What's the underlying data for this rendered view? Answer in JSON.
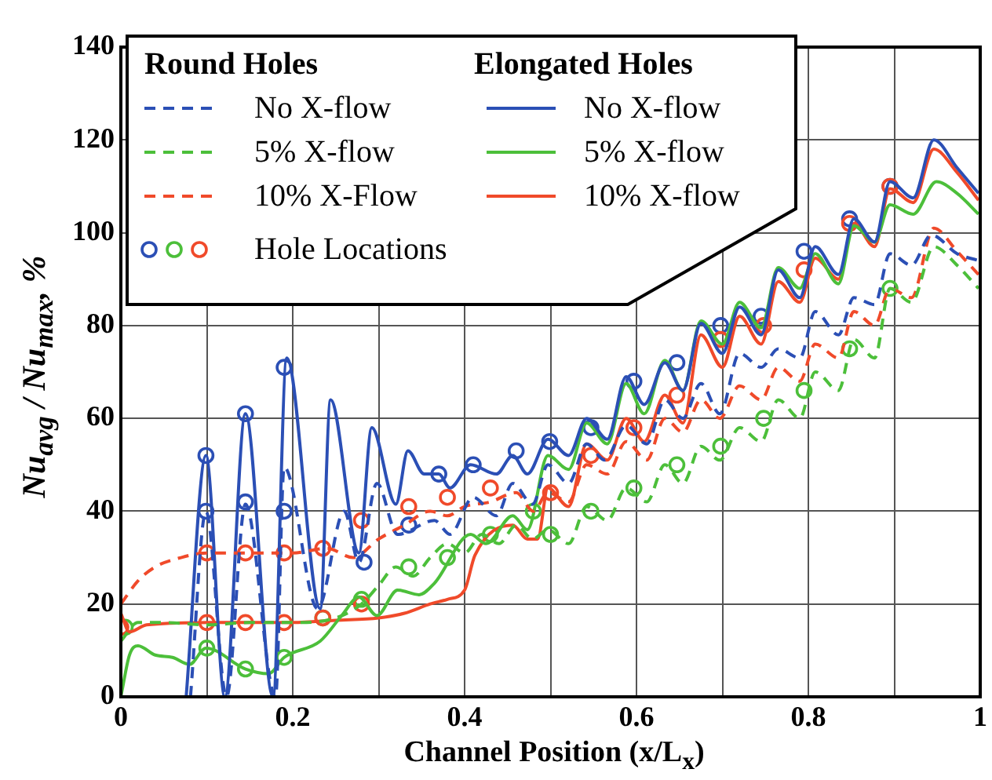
{
  "chart_data": {
    "type": "line",
    "xlabel": "Channel Position (x/L$_{x}$)",
    "ylabel": "Nu$_{avg}$ / Nu$_{max}$, %",
    "annotations": [
      "Round Holes",
      "Elongated Holes"
    ],
    "xlim": [
      0,
      1
    ],
    "xticks": [
      0,
      {
        "value": 0.1,
        "label": null
      },
      0.2,
      {
        "value": 0.3,
        "label": null
      },
      0.4,
      {
        "value": 0.5,
        "label": null
      },
      0.6,
      {
        "value": 0.7,
        "label": null
      },
      0.8,
      {
        "value": 0.9,
        "label": null
      },
      1
    ],
    "ylim": [
      0,
      140
    ],
    "yticks": [
      0,
      20,
      40,
      60,
      80,
      100,
      120,
      140
    ],
    "grid": true,
    "legend": "top left",
    "series": [
      {
        "name": "No X-flow",
        "color": "#2b4fb5",
        "line_style": "dashed",
        "x": [
          0.081,
          0.099,
          0.123,
          0.145,
          0.18,
          0.19,
          0.229,
          0.26,
          0.277,
          0.298,
          0.322,
          0.365,
          0.383,
          0.41,
          0.437,
          0.456,
          0.479,
          0.497,
          0.521,
          0.542,
          0.563,
          0.588,
          0.612,
          0.633,
          0.654,
          0.675,
          0.697,
          0.72,
          0.745,
          0.765,
          0.79,
          0.808,
          0.835,
          0.853,
          0.877,
          0.895,
          0.92,
          0.943,
          0.973,
          0.998
        ],
        "values": [
          0,
          40,
          0,
          41.5,
          0,
          49.5,
          19,
          40,
          29,
          46,
          35,
          38,
          35,
          43,
          39,
          46,
          41.5,
          50,
          46,
          54.5,
          51,
          58.5,
          54.5,
          64,
          60,
          67.5,
          61,
          74,
          71,
          75,
          73,
          83,
          78,
          86,
          84.5,
          95.5,
          93,
          99.5,
          95.5,
          94
        ]
      },
      {
        "name": "5% X-flow",
        "color": "#4cbf3a",
        "line_style": "dashed",
        "x": [
          0,
          0.02,
          0.05,
          0.1,
          0.15,
          0.2,
          0.25,
          0.28,
          0.3,
          0.32,
          0.34,
          0.36,
          0.38,
          0.4,
          0.42,
          0.44,
          0.46,
          0.479,
          0.497,
          0.521,
          0.542,
          0.566,
          0.588,
          0.612,
          0.633,
          0.654,
          0.675,
          0.697,
          0.72,
          0.745,
          0.765,
          0.79,
          0.808,
          0.835,
          0.853,
          0.877,
          0.895,
          0.92,
          0.946,
          0.973,
          0.998
        ],
        "values": [
          12,
          16,
          16,
          15.5,
          16,
          16,
          17,
          20,
          24,
          28,
          26,
          30,
          33,
          31,
          35,
          33,
          37,
          34,
          36,
          33,
          41,
          38,
          45,
          42,
          50,
          46,
          54,
          51,
          58,
          55,
          64,
          60,
          70,
          66,
          77,
          73,
          88,
          85,
          97,
          93,
          88
        ]
      },
      {
        "name": "10% X-Flow",
        "color": "#f04a2a",
        "line_style": "dashed",
        "x": [
          0,
          0.02,
          0.04,
          0.07,
          0.1,
          0.15,
          0.2,
          0.24,
          0.27,
          0.3,
          0.33,
          0.36,
          0.38,
          0.4,
          0.43,
          0.46,
          0.48,
          0.497,
          0.521,
          0.542,
          0.566,
          0.588,
          0.612,
          0.633,
          0.654,
          0.675,
          0.697,
          0.72,
          0.745,
          0.765,
          0.79,
          0.808,
          0.835,
          0.853,
          0.877,
          0.895,
          0.92,
          0.946,
          0.973,
          0.998
        ],
        "values": [
          20,
          25,
          28,
          30,
          31,
          31,
          31,
          32,
          30,
          34,
          37,
          40,
          39,
          41,
          42,
          44,
          40,
          44,
          42,
          50,
          48,
          55,
          51,
          60,
          57,
          64,
          60,
          67,
          64,
          71,
          68,
          76,
          73,
          83,
          80,
          88,
          86,
          101,
          96,
          91
        ]
      },
      {
        "name": "No X-flow",
        "color": "#2b4fb5",
        "line_style": "solid",
        "x": [
          0.076,
          0.099,
          0.121,
          0.145,
          0.177,
          0.193,
          0.232,
          0.244,
          0.277,
          0.292,
          0.32,
          0.334,
          0.353,
          0.37,
          0.383,
          0.407,
          0.437,
          0.456,
          0.473,
          0.497,
          0.521,
          0.542,
          0.566,
          0.588,
          0.609,
          0.633,
          0.654,
          0.675,
          0.7,
          0.72,
          0.745,
          0.765,
          0.79,
          0.808,
          0.835,
          0.853,
          0.877,
          0.895,
          0.922,
          0.946,
          0.973,
          0.998
        ],
        "values": [
          0,
          52,
          0,
          61,
          0,
          73,
          19,
          64,
          31,
          58,
          41.5,
          53,
          48,
          48,
          45,
          50,
          48,
          52,
          48,
          55.5,
          52,
          60,
          55.5,
          69,
          63,
          72,
          66,
          80.5,
          74,
          84,
          78,
          92,
          86,
          97,
          91,
          103,
          98,
          111,
          107.5,
          120,
          114,
          108.5
        ]
      },
      {
        "name": "5% X-flow",
        "color": "#4cbf3a",
        "line_style": "solid",
        "x": [
          0,
          0.01,
          0.02,
          0.04,
          0.06,
          0.08,
          0.099,
          0.145,
          0.172,
          0.19,
          0.232,
          0.257,
          0.277,
          0.298,
          0.322,
          0.347,
          0.365,
          0.407,
          0.425,
          0.456,
          0.473,
          0.497,
          0.521,
          0.542,
          0.566,
          0.588,
          0.609,
          0.633,
          0.654,
          0.675,
          0.7,
          0.72,
          0.745,
          0.765,
          0.79,
          0.808,
          0.835,
          0.853,
          0.877,
          0.895,
          0.922,
          0.949,
          0.973,
          0.998
        ],
        "values": [
          0,
          9,
          11,
          9,
          8.5,
          7,
          10.5,
          6,
          5,
          8.5,
          12,
          17.5,
          21.5,
          17.5,
          23,
          22,
          24.5,
          35,
          33,
          39,
          36,
          52,
          49,
          59,
          54.5,
          67.5,
          61,
          72.5,
          66,
          81,
          76,
          85,
          79.5,
          92.5,
          88,
          95.5,
          89,
          101.5,
          98,
          106,
          104,
          111,
          108.5,
          104
        ]
      },
      {
        "name": "10% X-flow",
        "color": "#f04a2a",
        "line_style": "solid",
        "x": [
          0,
          0.01,
          0.03,
          0.1,
          0.2,
          0.25,
          0.3,
          0.33,
          0.36,
          0.38,
          0.4,
          0.412,
          0.456,
          0.473,
          0.485,
          0.497,
          0.521,
          0.542,
          0.566,
          0.588,
          0.609,
          0.633,
          0.654,
          0.675,
          0.7,
          0.72,
          0.745,
          0.765,
          0.79,
          0.808,
          0.835,
          0.853,
          0.877,
          0.895,
          0.922,
          0.946,
          0.973,
          0.998
        ],
        "values": [
          18,
          14,
          15.5,
          16,
          16,
          16.5,
          17,
          18,
          20,
          21,
          23,
          30.5,
          37,
          34,
          34,
          45,
          41,
          54.5,
          51,
          60,
          55,
          65,
          59,
          78,
          71,
          82,
          76,
          89.5,
          85,
          94.5,
          90,
          102,
          97,
          109.5,
          106.5,
          118,
          113,
          107
        ]
      },
      {
        "name": "Hole Locations",
        "type": "scatter",
        "marker": "circle",
        "x": [
          0.099,
          0.099,
          0.145,
          0.145,
          0.19,
          0.19,
          0.283,
          0.335,
          0.37,
          0.41,
          0.46,
          0.499,
          0.547,
          0.597,
          0.647,
          0.698,
          0.745,
          0.795,
          0.848,
          0.895,
          0.005,
          0.1,
          0.145,
          0.19,
          0.235,
          0.28,
          0.335,
          0.38,
          0.43,
          0.48,
          0.5,
          0.547,
          0.597,
          0.647,
          0.698,
          0.748,
          0.795,
          0.848,
          0.895,
          0.0,
          0.1,
          0.145,
          0.19,
          0.235,
          0.28,
          0.1,
          0.145,
          0.19,
          0.235,
          0.28,
          0.335,
          0.38,
          0.43,
          0.5,
          0.547,
          0.597,
          0.647,
          0.698,
          0.748,
          0.795,
          0.848,
          0.895
        ],
        "values": [
          52,
          40,
          61,
          42,
          71,
          40,
          29,
          37,
          48,
          50,
          53,
          55,
          58,
          68,
          72,
          80,
          82,
          96,
          103,
          110,
          15,
          10.5,
          6,
          8.5,
          17,
          21,
          28,
          30,
          35,
          40,
          35,
          40,
          45,
          50,
          54,
          60,
          66,
          75,
          88,
          15,
          16,
          16,
          16,
          17,
          20,
          31,
          31,
          31,
          32,
          38,
          41,
          43,
          45,
          44,
          52,
          58,
          65,
          77,
          80,
          92,
          102,
          110
        ],
        "colors": [
          "#2b4fb5",
          "#2b4fb5",
          "#2b4fb5",
          "#2b4fb5",
          "#2b4fb5",
          "#2b4fb5",
          "#2b4fb5",
          "#2b4fb5",
          "#2b4fb5",
          "#2b4fb5",
          "#2b4fb5",
          "#2b4fb5",
          "#2b4fb5",
          "#2b4fb5",
          "#2b4fb5",
          "#2b4fb5",
          "#2b4fb5",
          "#2b4fb5",
          "#2b4fb5",
          "#2b4fb5",
          "#4cbf3a",
          "#4cbf3a",
          "#4cbf3a",
          "#4cbf3a",
          "#4cbf3a",
          "#4cbf3a",
          "#4cbf3a",
          "#4cbf3a",
          "#4cbf3a",
          "#4cbf3a",
          "#4cbf3a",
          "#4cbf3a",
          "#4cbf3a",
          "#4cbf3a",
          "#4cbf3a",
          "#4cbf3a",
          "#4cbf3a",
          "#4cbf3a",
          "#4cbf3a",
          "#f04a2a",
          "#f04a2a",
          "#f04a2a",
          "#f04a2a",
          "#f04a2a",
          "#f04a2a",
          "#f04a2a",
          "#f04a2a",
          "#f04a2a",
          "#f04a2a",
          "#f04a2a",
          "#f04a2a",
          "#f04a2a",
          "#f04a2a",
          "#f04a2a",
          "#f04a2a",
          "#f04a2a",
          "#f04a2a",
          "#f04a2a",
          "#f04a2a",
          "#f04a2a",
          "#f04a2a",
          "#f04a2a"
        ]
      }
    ]
  }
}
